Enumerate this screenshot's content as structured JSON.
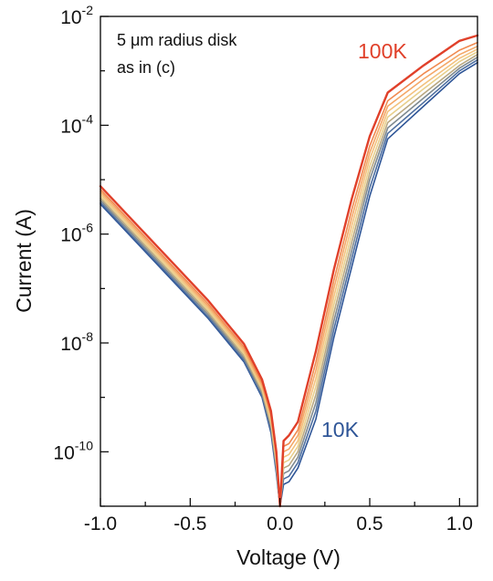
{
  "chart_data": {
    "type": "line",
    "xlabel": "Voltage (V)",
    "ylabel": "Current (A)",
    "xlim": [
      -1.0,
      1.1
    ],
    "ylim_log10": [
      -11.0,
      -2.0
    ],
    "yscale": "log",
    "grid": false,
    "x_ticks": [
      {
        "value": -1.0,
        "label": "-1.0"
      },
      {
        "value": -0.5,
        "label": "-0.5"
      },
      {
        "value": 0.0,
        "label": "0.0"
      },
      {
        "value": 0.5,
        "label": "0.5"
      },
      {
        "value": 1.0,
        "label": "1.0"
      }
    ],
    "y_ticks": [
      {
        "exp": -10,
        "base": "10",
        "sup": "-10"
      },
      {
        "exp": -8,
        "base": "10",
        "sup": "-8"
      },
      {
        "exp": -6,
        "base": "10",
        "sup": "-6"
      },
      {
        "exp": -4,
        "base": "10",
        "sup": "-4"
      },
      {
        "exp": -2,
        "base": "10",
        "sup": "-2"
      }
    ],
    "annotation": [
      "5 μm radius disk",
      "as in (c)"
    ],
    "series_labels": {
      "high": {
        "text": "100K",
        "color": "#e0402a"
      },
      "low": {
        "text": "10K",
        "color": "#2e5597"
      }
    },
    "series": [
      {
        "color": "#2e5597",
        "points": [
          [
            -1.0,
            -5.45
          ],
          [
            -0.8,
            -6.15
          ],
          [
            -0.6,
            -6.85
          ],
          [
            -0.4,
            -7.55
          ],
          [
            -0.2,
            -8.35
          ],
          [
            -0.1,
            -9.0
          ],
          [
            -0.05,
            -9.65
          ],
          [
            -0.02,
            -10.4
          ],
          [
            0.0,
            -11.0
          ],
          [
            0.02,
            -10.6
          ],
          [
            0.05,
            -10.55
          ],
          [
            0.1,
            -10.3
          ],
          [
            0.2,
            -9.4
          ],
          [
            0.3,
            -7.9
          ],
          [
            0.4,
            -6.6
          ],
          [
            0.5,
            -5.3
          ],
          [
            0.6,
            -4.25
          ],
          [
            0.8,
            -3.65
          ],
          [
            1.0,
            -3.05
          ],
          [
            1.1,
            -2.85
          ]
        ]
      },
      {
        "color": "#4e6fa0",
        "points": [
          [
            -1.0,
            -5.42
          ],
          [
            -0.8,
            -6.12
          ],
          [
            -0.6,
            -6.82
          ],
          [
            -0.4,
            -7.52
          ],
          [
            -0.2,
            -8.32
          ],
          [
            -0.1,
            -8.97
          ],
          [
            -0.05,
            -9.6
          ],
          [
            -0.02,
            -10.35
          ],
          [
            0.0,
            -11.0
          ],
          [
            0.02,
            -10.5
          ],
          [
            0.05,
            -10.45
          ],
          [
            0.1,
            -10.2
          ],
          [
            0.2,
            -9.25
          ],
          [
            0.3,
            -7.75
          ],
          [
            0.4,
            -6.45
          ],
          [
            0.5,
            -5.15
          ],
          [
            0.6,
            -4.15
          ],
          [
            0.8,
            -3.58
          ],
          [
            1.0,
            -3.0
          ],
          [
            1.1,
            -2.8
          ]
        ]
      },
      {
        "color": "#7f8a90",
        "points": [
          [
            -1.0,
            -5.38
          ],
          [
            -0.8,
            -6.08
          ],
          [
            -0.6,
            -6.78
          ],
          [
            -0.4,
            -7.48
          ],
          [
            -0.2,
            -8.28
          ],
          [
            -0.1,
            -8.93
          ],
          [
            -0.05,
            -9.55
          ],
          [
            -0.02,
            -10.3
          ],
          [
            0.0,
            -11.0
          ],
          [
            0.02,
            -10.4
          ],
          [
            0.05,
            -10.35
          ],
          [
            0.1,
            -10.1
          ],
          [
            0.2,
            -9.1
          ],
          [
            0.3,
            -7.6
          ],
          [
            0.4,
            -6.3
          ],
          [
            0.5,
            -5.0
          ],
          [
            0.6,
            -4.05
          ],
          [
            0.8,
            -3.5
          ],
          [
            1.0,
            -2.95
          ],
          [
            1.1,
            -2.75
          ]
        ]
      },
      {
        "color": "#b9a882",
        "points": [
          [
            -1.0,
            -5.34
          ],
          [
            -0.8,
            -6.04
          ],
          [
            -0.6,
            -6.74
          ],
          [
            -0.4,
            -7.44
          ],
          [
            -0.2,
            -8.24
          ],
          [
            -0.1,
            -8.89
          ],
          [
            -0.05,
            -9.5
          ],
          [
            -0.02,
            -10.25
          ],
          [
            0.0,
            -11.0
          ],
          [
            0.02,
            -10.3
          ],
          [
            0.05,
            -10.25
          ],
          [
            0.1,
            -10.0
          ],
          [
            0.2,
            -8.95
          ],
          [
            0.3,
            -7.45
          ],
          [
            0.4,
            -6.15
          ],
          [
            0.5,
            -4.88
          ],
          [
            0.6,
            -3.95
          ],
          [
            0.8,
            -3.42
          ],
          [
            1.0,
            -2.9
          ],
          [
            1.1,
            -2.7
          ]
        ]
      },
      {
        "color": "#e8cf8c",
        "points": [
          [
            -1.0,
            -5.3
          ],
          [
            -0.8,
            -6.0
          ],
          [
            -0.6,
            -6.7
          ],
          [
            -0.4,
            -7.4
          ],
          [
            -0.2,
            -8.2
          ],
          [
            -0.1,
            -8.85
          ],
          [
            -0.05,
            -9.45
          ],
          [
            -0.02,
            -10.2
          ],
          [
            0.0,
            -11.0
          ],
          [
            0.02,
            -10.2
          ],
          [
            0.05,
            -10.15
          ],
          [
            0.1,
            -9.9
          ],
          [
            0.2,
            -8.8
          ],
          [
            0.3,
            -7.3
          ],
          [
            0.4,
            -6.0
          ],
          [
            0.5,
            -4.75
          ],
          [
            0.6,
            -3.85
          ],
          [
            0.8,
            -3.33
          ],
          [
            1.0,
            -2.83
          ],
          [
            1.1,
            -2.65
          ]
        ]
      },
      {
        "color": "#f3c27e",
        "points": [
          [
            -1.0,
            -5.26
          ],
          [
            -0.8,
            -5.96
          ],
          [
            -0.6,
            -6.66
          ],
          [
            -0.4,
            -7.36
          ],
          [
            -0.2,
            -8.16
          ],
          [
            -0.1,
            -8.81
          ],
          [
            -0.05,
            -9.4
          ],
          [
            -0.02,
            -10.15
          ],
          [
            0.0,
            -11.0
          ],
          [
            0.02,
            -10.1
          ],
          [
            0.05,
            -10.05
          ],
          [
            0.1,
            -9.8
          ],
          [
            0.2,
            -8.65
          ],
          [
            0.3,
            -7.15
          ],
          [
            0.4,
            -5.85
          ],
          [
            0.5,
            -4.62
          ],
          [
            0.6,
            -3.75
          ],
          [
            0.8,
            -3.25
          ],
          [
            1.0,
            -2.77
          ],
          [
            1.1,
            -2.6
          ]
        ]
      },
      {
        "color": "#f4a868",
        "points": [
          [
            -1.0,
            -5.22
          ],
          [
            -0.8,
            -5.92
          ],
          [
            -0.6,
            -6.62
          ],
          [
            -0.4,
            -7.32
          ],
          [
            -0.2,
            -8.12
          ],
          [
            -0.1,
            -8.77
          ],
          [
            -0.05,
            -9.35
          ],
          [
            -0.02,
            -10.1
          ],
          [
            0.0,
            -11.0
          ],
          [
            0.02,
            -10.0
          ],
          [
            0.05,
            -9.95
          ],
          [
            0.1,
            -9.7
          ],
          [
            0.2,
            -8.5
          ],
          [
            0.3,
            -7.0
          ],
          [
            0.4,
            -5.7
          ],
          [
            0.5,
            -4.5
          ],
          [
            0.6,
            -3.65
          ],
          [
            0.8,
            -3.15
          ],
          [
            1.0,
            -2.7
          ],
          [
            1.1,
            -2.55
          ]
        ]
      },
      {
        "color": "#f08a50",
        "points": [
          [
            -1.0,
            -5.18
          ],
          [
            -0.8,
            -5.88
          ],
          [
            -0.6,
            -6.58
          ],
          [
            -0.4,
            -7.28
          ],
          [
            -0.2,
            -8.08
          ],
          [
            -0.1,
            -8.73
          ],
          [
            -0.05,
            -9.3
          ],
          [
            -0.02,
            -10.05
          ],
          [
            0.0,
            -11.0
          ],
          [
            0.02,
            -9.9
          ],
          [
            0.05,
            -9.85
          ],
          [
            0.1,
            -9.6
          ],
          [
            0.2,
            -8.35
          ],
          [
            0.3,
            -6.85
          ],
          [
            0.4,
            -5.55
          ],
          [
            0.5,
            -4.38
          ],
          [
            0.6,
            -3.55
          ],
          [
            0.8,
            -3.05
          ],
          [
            1.0,
            -2.62
          ],
          [
            1.1,
            -2.48
          ]
        ]
      },
      {
        "color": "#e0402a",
        "points": [
          [
            -1.0,
            -5.12
          ],
          [
            -0.8,
            -5.82
          ],
          [
            -0.6,
            -6.52
          ],
          [
            -0.4,
            -7.22
          ],
          [
            -0.2,
            -8.02
          ],
          [
            -0.1,
            -8.67
          ],
          [
            -0.05,
            -9.25
          ],
          [
            -0.02,
            -10.0
          ],
          [
            0.0,
            -11.0
          ],
          [
            0.02,
            -9.8
          ],
          [
            0.05,
            -9.7
          ],
          [
            0.1,
            -9.45
          ],
          [
            0.2,
            -8.15
          ],
          [
            0.3,
            -6.65
          ],
          [
            0.4,
            -5.35
          ],
          [
            0.5,
            -4.2
          ],
          [
            0.6,
            -3.4
          ],
          [
            0.8,
            -2.9
          ],
          [
            1.0,
            -2.45
          ],
          [
            1.1,
            -2.35
          ]
        ]
      }
    ]
  }
}
